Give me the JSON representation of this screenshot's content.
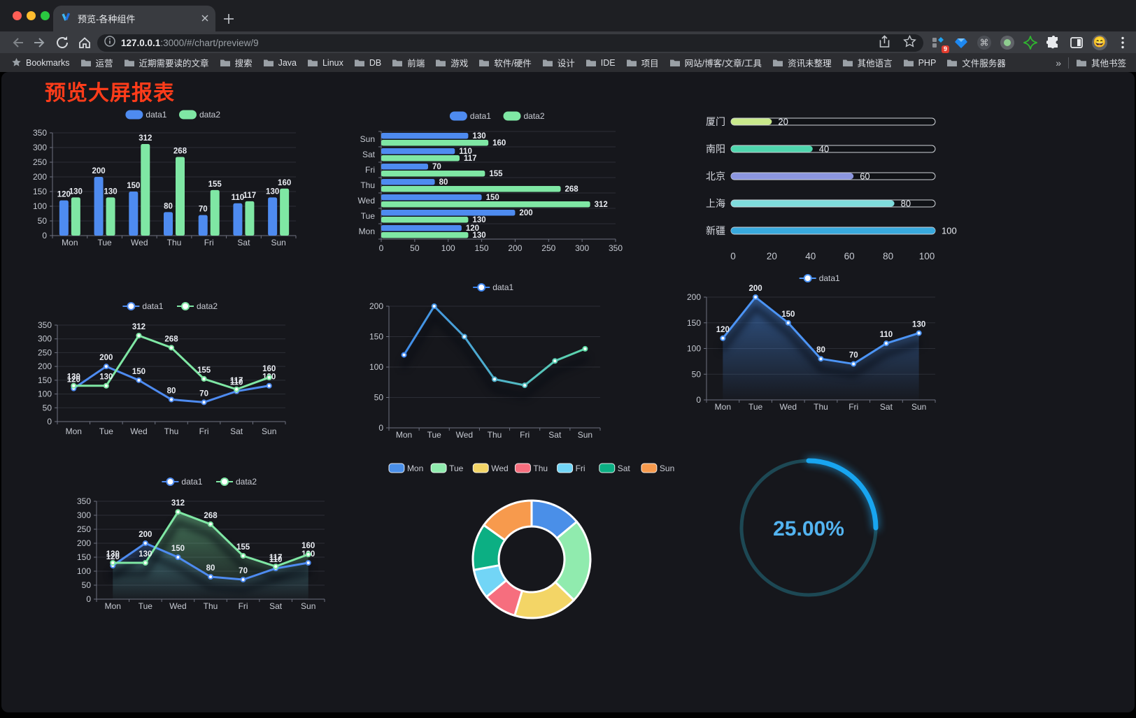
{
  "browser": {
    "traffic_lights": [
      "#ff5f57",
      "#febc2e",
      "#2ac840"
    ],
    "tab": {
      "title": "预览-各种组件"
    },
    "url": {
      "host": "127.0.0.1",
      "path": ":3000/#/chart/preview/9"
    },
    "extensions_badge": "9",
    "avatar_emoji": "😄",
    "bookmarks": {
      "root_label": "Bookmarks",
      "folders": [
        "运营",
        "近期需要读的文章",
        "搜索",
        "Java",
        "Linux",
        "DB",
        "前端",
        "游戏",
        "软件/硬件",
        "设计",
        "IDE",
        "项目",
        "网站/博客/文章/工具",
        "资讯未整理",
        "其他语言",
        "PHP",
        "文件服务器"
      ],
      "overflow_chevron": "»",
      "other_bookmarks": "其他书签"
    }
  },
  "page": {
    "title": "预览大屏报表"
  },
  "chart_data": [
    {
      "id": "grouped-bar",
      "type": "bar",
      "legend_position": "top",
      "grid": true,
      "categories": [
        "Mon",
        "Tue",
        "Wed",
        "Thu",
        "Fri",
        "Sat",
        "Sun"
      ],
      "series": [
        {
          "name": "data1",
          "color": "#4e8bf0",
          "values": [
            120,
            200,
            150,
            80,
            70,
            110,
            130
          ]
        },
        {
          "name": "data2",
          "color": "#7fe7a4",
          "values": [
            130,
            130,
            312,
            268,
            155,
            117,
            160
          ]
        }
      ],
      "ylim": [
        0,
        350
      ],
      "ytick": 50,
      "value_labels": true
    },
    {
      "id": "horizontal-bar",
      "type": "bar",
      "orientation": "horizontal",
      "legend_position": "top",
      "categories": [
        "Mon",
        "Tue",
        "Wed",
        "Thu",
        "Fri",
        "Sat",
        "Sun"
      ],
      "display_top_to_bottom": [
        "Sun",
        "Sat",
        "Fri",
        "Thu",
        "Wed",
        "Tue",
        "Mon"
      ],
      "series": [
        {
          "name": "data1",
          "color": "#4e8bf0",
          "values": [
            120,
            200,
            150,
            80,
            70,
            110,
            130
          ]
        },
        {
          "name": "data2",
          "color": "#7fe7a4",
          "values": [
            130,
            130,
            312,
            268,
            155,
            117,
            160
          ]
        }
      ],
      "xlim": [
        0,
        350
      ],
      "xtick": 50,
      "value_labels": true
    },
    {
      "id": "progress-bar",
      "type": "bar",
      "orientation": "progress",
      "items": [
        {
          "label": "厦门",
          "value": 20,
          "color": "#c9e98b"
        },
        {
          "label": "南阳",
          "value": 40,
          "color": "#4fd6ad"
        },
        {
          "label": "北京",
          "value": 60,
          "color": "#8c96df"
        },
        {
          "label": "上海",
          "value": 80,
          "color": "#7fdcdc"
        },
        {
          "label": "新疆",
          "value": 100,
          "color": "#38a9dd"
        }
      ],
      "xlim": [
        0,
        100
      ],
      "xticks": [
        0,
        20,
        40,
        60,
        80,
        100
      ]
    },
    {
      "id": "line-two-series",
      "type": "line",
      "legend_position": "top",
      "categories": [
        "Mon",
        "Tue",
        "Wed",
        "Thu",
        "Fri",
        "Sat",
        "Sun"
      ],
      "series": [
        {
          "name": "data1",
          "color": "#4e8bf0",
          "values": [
            120,
            200,
            150,
            80,
            70,
            110,
            130
          ]
        },
        {
          "name": "data2",
          "color": "#7fe7a4",
          "values": [
            130,
            130,
            312,
            268,
            155,
            117,
            160
          ]
        }
      ],
      "ylim": [
        0,
        350
      ],
      "ytick": 50,
      "value_labels": true
    },
    {
      "id": "line-gradient",
      "type": "line",
      "legend_position": "top",
      "categories": [
        "Mon",
        "Tue",
        "Wed",
        "Thu",
        "Fri",
        "Sat",
        "Sun"
      ],
      "series": [
        {
          "name": "data1",
          "color_start": "#3e86f0",
          "color_end": "#5fdca6",
          "values": [
            120,
            200,
            150,
            80,
            70,
            110,
            130
          ]
        }
      ],
      "ylim": [
        0,
        200
      ],
      "ytick": 50,
      "value_labels": false,
      "shadow": true
    },
    {
      "id": "area-single",
      "type": "area",
      "legend_position": "top",
      "categories": [
        "Mon",
        "Tue",
        "Wed",
        "Thu",
        "Fri",
        "Sat",
        "Sun"
      ],
      "series": [
        {
          "name": "data1",
          "color": "#4c94f5",
          "values": [
            120,
            200,
            150,
            80,
            70,
            110,
            130
          ]
        }
      ],
      "ylim": [
        0,
        200
      ],
      "ytick": 50,
      "value_labels": true,
      "shadow": true
    },
    {
      "id": "area-two-series",
      "type": "area",
      "legend_position": "top",
      "categories": [
        "Mon",
        "Tue",
        "Wed",
        "Thu",
        "Fri",
        "Sat",
        "Sun"
      ],
      "series": [
        {
          "name": "data1",
          "color": "#4e8bf0",
          "values": [
            120,
            200,
            150,
            80,
            70,
            110,
            130
          ]
        },
        {
          "name": "data2",
          "color": "#7fe7a4",
          "values": [
            130,
            130,
            312,
            268,
            155,
            117,
            160
          ]
        }
      ],
      "ylim": [
        0,
        350
      ],
      "ytick": 50,
      "value_labels": true,
      "shadow": true
    },
    {
      "id": "donut",
      "type": "pie",
      "legend_position": "top",
      "border_color": "#ffffff",
      "items": [
        {
          "label": "Mon",
          "value": 120,
          "color": "#4a8fe8"
        },
        {
          "label": "Tue",
          "value": 200,
          "color": "#90ebae"
        },
        {
          "label": "Wed",
          "value": 150,
          "color": "#f3d566"
        },
        {
          "label": "Thu",
          "value": 80,
          "color": "#f66e7e"
        },
        {
          "label": "Fri",
          "value": 70,
          "color": "#72d5f6"
        },
        {
          "label": "Sat",
          "value": 110,
          "color": "#0caf83"
        },
        {
          "label": "Sun",
          "value": 130,
          "color": "#f79a4d"
        }
      ]
    },
    {
      "id": "gauge",
      "type": "gauge",
      "value_percent": 25,
      "label": "25.00%",
      "progress_color": "#18a5f0",
      "track_color": "#1d4854",
      "text_color": "#53b4f1"
    }
  ]
}
